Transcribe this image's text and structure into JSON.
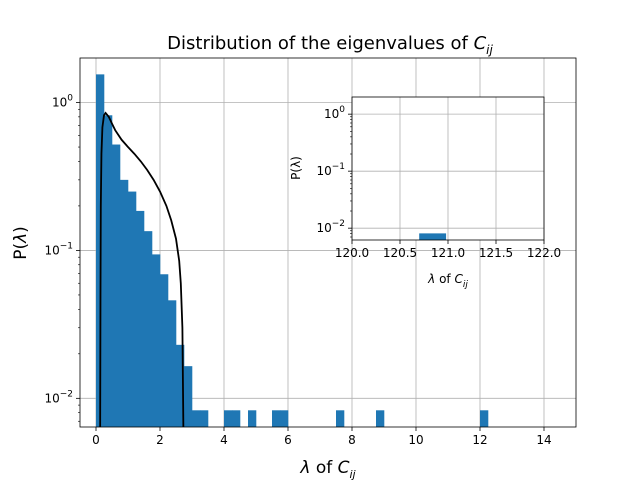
{
  "chart_data": [
    {
      "id": "main",
      "type": "bar",
      "title": "Distribution of the eigenvalues of C_ij",
      "title_parts": [
        "Distribution of the eigenvalues of ",
        "C",
        "ij"
      ],
      "xlabel": "λ of C_ij",
      "xlabel_parts": [
        "λ",
        " of ",
        "C",
        "ij"
      ],
      "ylabel": "P(λ)",
      "ylabel_parts": [
        "P(",
        "λ",
        ")"
      ],
      "xlim": [
        -0.5,
        15
      ],
      "ylim": [
        0.0064,
        2.0
      ],
      "yscale": "log",
      "grid": true,
      "xticks": [
        0,
        2,
        4,
        6,
        8,
        10,
        12,
        14
      ],
      "xtick_labels": [
        "0",
        "2",
        "4",
        "6",
        "8",
        "10",
        "12",
        "14"
      ],
      "yticks": [
        1,
        0.1,
        0.01
      ],
      "ytick_labels": [
        "10",
        "10",
        "10"
      ],
      "ytick_exponents": [
        "0",
        "−1",
        "−2"
      ],
      "bar_color": "#1f77b4",
      "curve_color": "#000000",
      "bin_width": 0.25,
      "bins": [
        {
          "x0": 0.0,
          "value": 1.55
        },
        {
          "x0": 0.25,
          "value": 0.82
        },
        {
          "x0": 0.5,
          "value": 0.52
        },
        {
          "x0": 0.75,
          "value": 0.3
        },
        {
          "x0": 1.0,
          "value": 0.25
        },
        {
          "x0": 1.25,
          "value": 0.185
        },
        {
          "x0": 1.5,
          "value": 0.135
        },
        {
          "x0": 1.75,
          "value": 0.094
        },
        {
          "x0": 2.0,
          "value": 0.069
        },
        {
          "x0": 2.25,
          "value": 0.046
        },
        {
          "x0": 2.5,
          "value": 0.023
        },
        {
          "x0": 2.75,
          "value": 0.0165
        },
        {
          "x0": 3.0,
          "value": 0.0083
        },
        {
          "x0": 3.25,
          "value": 0.0083
        },
        {
          "x0": 4.0,
          "value": 0.0083
        },
        {
          "x0": 4.25,
          "value": 0.0083
        },
        {
          "x0": 4.75,
          "value": 0.0083
        },
        {
          "x0": 5.5,
          "value": 0.0083
        },
        {
          "x0": 5.75,
          "value": 0.0083
        },
        {
          "x0": 7.5,
          "value": 0.0083
        },
        {
          "x0": 8.75,
          "value": 0.0083
        },
        {
          "x0": 12.0,
          "value": 0.0083
        }
      ],
      "curve": {
        "type": "line",
        "points": [
          [
            0.13,
            0.0064
          ],
          [
            0.14,
            0.05
          ],
          [
            0.15,
            0.2
          ],
          [
            0.17,
            0.45
          ],
          [
            0.2,
            0.68
          ],
          [
            0.25,
            0.82
          ],
          [
            0.3,
            0.85
          ],
          [
            0.4,
            0.8
          ],
          [
            0.5,
            0.72
          ],
          [
            0.6,
            0.65
          ],
          [
            0.8,
            0.56
          ],
          [
            1.0,
            0.5
          ],
          [
            1.2,
            0.45
          ],
          [
            1.4,
            0.4
          ],
          [
            1.6,
            0.35
          ],
          [
            1.8,
            0.3
          ],
          [
            2.0,
            0.25
          ],
          [
            2.2,
            0.2
          ],
          [
            2.35,
            0.16
          ],
          [
            2.5,
            0.12
          ],
          [
            2.6,
            0.085
          ],
          [
            2.65,
            0.06
          ],
          [
            2.7,
            0.03
          ],
          [
            2.73,
            0.0064
          ]
        ]
      }
    },
    {
      "id": "inset",
      "type": "bar",
      "xlabel": "λ of C_ij",
      "xlabel_parts": [
        "λ",
        " of ",
        "C",
        "ij"
      ],
      "ylabel": "P(λ)",
      "xlim": [
        120.0,
        122.0
      ],
      "ylim": [
        0.0062,
        2.0
      ],
      "yscale": "log",
      "grid": true,
      "xticks": [
        120.0,
        120.5,
        121.0,
        121.5,
        122.0
      ],
      "xtick_labels": [
        "120.0",
        "120.5",
        "121.0",
        "121.5",
        "122.0"
      ],
      "yticks": [
        1,
        0.1,
        0.01
      ],
      "ytick_labels": [
        "10",
        "10",
        "10"
      ],
      "ytick_exponents": [
        "0",
        "−1",
        "−2"
      ],
      "bar_color": "#1f77b4",
      "bins": [
        {
          "x0": 120.7,
          "x1": 120.98,
          "value": 0.0081
        }
      ]
    }
  ]
}
